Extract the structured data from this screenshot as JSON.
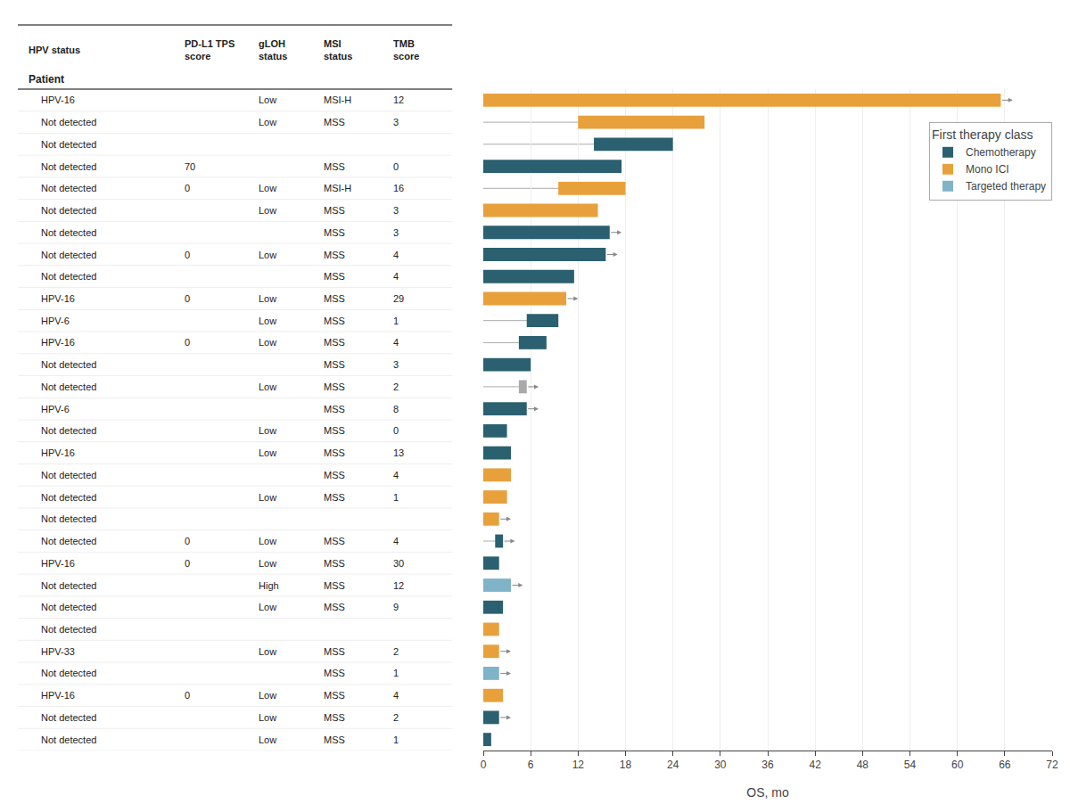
{
  "chart_data": {
    "type": "bar",
    "orientation": "horizontal",
    "xlabel": "OS, mo",
    "xlim": [
      0,
      72
    ],
    "xticks": [
      0,
      6,
      12,
      18,
      24,
      30,
      36,
      42,
      48,
      54,
      60,
      66,
      72
    ],
    "grid": true,
    "tick_labels": "x",
    "legend": "upper right",
    "legend_title": "First therapy class",
    "legend_items": [
      {
        "name": "Chemotherapy",
        "color": "#2a6070"
      },
      {
        "name": "Mono ICI",
        "color": "#e8a03b"
      },
      {
        "name": "Targeted therapy",
        "color": "#7fb3c8"
      }
    ],
    "categories": [
      null,
      null,
      null,
      null,
      null,
      null,
      null,
      null,
      null,
      null,
      null,
      null,
      null,
      null,
      null,
      null,
      null,
      null,
      null,
      null,
      null,
      null,
      null,
      null,
      null,
      null,
      null,
      null,
      null,
      null
    ],
    "values": [
      65.5,
      16.0,
      10.0,
      17.5,
      8.5,
      14.5,
      16.0,
      15.5,
      11.5,
      10.5,
      4.0,
      3.5,
      6.0,
      1.0,
      5.5,
      3.0,
      3.5,
      3.5,
      3.0,
      2.0,
      1.0,
      2.0,
      3.5,
      2.5,
      2.0,
      2.0,
      2.0,
      2.5,
      2.0,
      1.0
    ],
    "starts": [
      0,
      12.0,
      14.0,
      0,
      9.5,
      0,
      0,
      0,
      0,
      0,
      5.5,
      4.5,
      0,
      4.5,
      0,
      0,
      0,
      0,
      0,
      0,
      1.5,
      0,
      0,
      0,
      0,
      0,
      0,
      0,
      0,
      0
    ],
    "totals": [
      null,
      28.0,
      24.0,
      null,
      18.0,
      null,
      null,
      null,
      null,
      null,
      9.5,
      8.0,
      null,
      5.5,
      null,
      null,
      null,
      null,
      null,
      null,
      2.5,
      null,
      null,
      null,
      null,
      null,
      null,
      null,
      null,
      null
    ],
    "censored": [
      true,
      false,
      false,
      false,
      false,
      false,
      true,
      true,
      false,
      true,
      false,
      false,
      false,
      true,
      true,
      false,
      false,
      false,
      false,
      true,
      true,
      false,
      true,
      false,
      false,
      true,
      true,
      false,
      true,
      false
    ],
    "colors": [
      "#e8a03b",
      "#e8a03b",
      "#2a6070",
      "#2a6070",
      "#e8a03b",
      "#e8a03b",
      "#2a6070",
      "#2a6070",
      "#2a6070",
      "#e8a03b",
      "#2a6070",
      "#2a6070",
      "#2a6070",
      "#aaaaaa",
      "#2a6070",
      "#2a6070",
      "#2a6070",
      "#e8a03b",
      "#e8a03b",
      "#e8a03b",
      "#2a6070",
      "#2a6070",
      "#7fb3c8",
      "#2a6070",
      "#e8a03b",
      "#e8a03b",
      "#7fb3c8",
      "#e8a03b",
      "#2a6070",
      "#2a6070"
    ],
    "table": {
      "columns": [
        "HPV status",
        "PD-L1 TPS\nscore",
        "gLOH\nstatus",
        "MSI\nstatus",
        "TMB\nscore"
      ],
      "subheader": "Patient",
      "rows": [
        [
          "HPV-16",
          null,
          "Low",
          "MSI-H",
          12
        ],
        [
          "Not detected",
          null,
          "Low",
          "MSS",
          3
        ],
        [
          "Not detected",
          null,
          null,
          null,
          null
        ],
        [
          "Not detected",
          "70",
          null,
          "MSS",
          0
        ],
        [
          "Not detected",
          "0",
          "Low",
          "MSI-H",
          16
        ],
        [
          "Not detected",
          null,
          "Low",
          "MSS",
          3
        ],
        [
          "Not detected",
          null,
          null,
          "MSS",
          3
        ],
        [
          "Not detected",
          "0",
          "Low",
          "MSS",
          4
        ],
        [
          "Not detected",
          null,
          null,
          "MSS",
          4
        ],
        [
          "HPV-16",
          "0",
          "Low",
          "MSS",
          29
        ],
        [
          "HPV-6",
          null,
          "Low",
          "MSS",
          1
        ],
        [
          "HPV-16",
          "0",
          "Low",
          "MSS",
          4
        ],
        [
          "Not detected",
          null,
          null,
          "MSS",
          3
        ],
        [
          "Not detected",
          null,
          "Low",
          "MSS",
          2
        ],
        [
          "HPV-6",
          null,
          null,
          "MSS",
          8
        ],
        [
          "Not detected",
          null,
          "Low",
          "MSS",
          0
        ],
        [
          "HPV-16",
          null,
          "Low",
          "MSS",
          13
        ],
        [
          "Not detected",
          null,
          null,
          "MSS",
          4
        ],
        [
          "Not detected",
          null,
          "Low",
          "MSS",
          1
        ],
        [
          "Not detected",
          null,
          null,
          null,
          null
        ],
        [
          "Not detected",
          "0",
          "Low",
          "MSS",
          4
        ],
        [
          "HPV-16",
          "0",
          "Low",
          "MSS",
          30
        ],
        [
          "Not detected",
          null,
          "High",
          "MSS",
          12
        ],
        [
          "Not detected",
          null,
          "Low",
          "MSS",
          9
        ],
        [
          "Not detected",
          null,
          null,
          null,
          null
        ],
        [
          "HPV-33",
          null,
          "Low",
          "MSS",
          2
        ],
        [
          "Not detected",
          null,
          null,
          "MSS",
          1
        ],
        [
          "HPV-16",
          "0",
          "Low",
          "MSS",
          4
        ],
        [
          "Not detected",
          null,
          "Low",
          "MSS",
          2
        ],
        [
          "Not detected",
          null,
          "Low",
          "MSS",
          1
        ]
      ]
    }
  }
}
